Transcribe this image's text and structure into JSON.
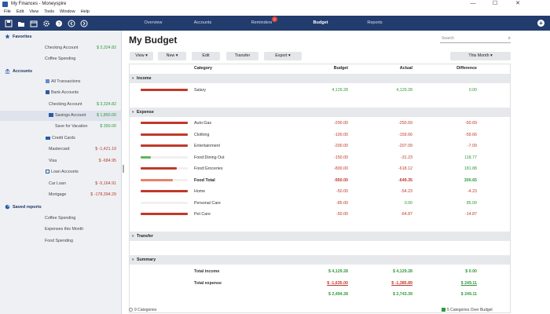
{
  "window": {
    "title": "My Finances - Moneyspire",
    "min": "—",
    "max": "☐",
    "close": "✕"
  },
  "menu": [
    "File",
    "Edit",
    "View",
    "Tools",
    "Window",
    "Help"
  ],
  "nav_tabs": [
    {
      "label": "Overview"
    },
    {
      "label": "Accounts"
    },
    {
      "label": "Reminders",
      "badge": "2"
    },
    {
      "label": "Budget"
    },
    {
      "label": "Reports"
    }
  ],
  "sidebar": {
    "favorites": {
      "title": "Favorites",
      "items": [
        {
          "label": "Checking Account",
          "amount": "$ 3,324.82"
        },
        {
          "label": "Coffee Spending",
          "amount": ""
        }
      ]
    },
    "accounts": {
      "title": "Accounts",
      "all": "All Transactions",
      "bank": "Bank Accounts",
      "bank_items": [
        {
          "label": "Checking Account",
          "amount": "$ 3,324.82"
        },
        {
          "label": "Savings Account",
          "amount": "$ 1,850.00"
        },
        {
          "label": "Save for Vacation",
          "amount": "$ 350.00"
        }
      ],
      "credit": "Credit Cards",
      "credit_items": [
        {
          "label": "Mastercard",
          "amount": "$ -1,421.19"
        },
        {
          "label": "Visa",
          "amount": "$ -684.95"
        }
      ],
      "loan": "Loan Accounts",
      "loan_items": [
        {
          "label": "Car Loan",
          "amount": "$ -5,164.91"
        },
        {
          "label": "Mortgage",
          "amount": "$ -178,394.29"
        }
      ]
    },
    "saved_reports": {
      "title": "Saved reports",
      "items": [
        "Coffee Spending",
        "Expenses this Month",
        "Food Spending"
      ]
    }
  },
  "main": {
    "title": "My Budget",
    "search_placeholder": "Search",
    "buttons": {
      "view": "View ▾",
      "new": "New ▾",
      "edit": "Edit",
      "transfer": "Transfer",
      "export": "Export ▾",
      "period": "This Month ▾"
    },
    "columns": {
      "category": "Category",
      "budget": "Budget",
      "actual": "Actual",
      "difference": "Difference"
    },
    "groups": {
      "income": "Income",
      "expense": "Expense",
      "transfer": "Transfer",
      "summary": "Summary"
    },
    "income_rows": [
      {
        "category": "Salary",
        "budget": "4,129.28",
        "actual": "4,129.28",
        "difference": "0.00",
        "fill": 1.0,
        "bar_color": "#c0392b"
      }
    ],
    "expense_rows": [
      {
        "category": "Auto:Gas",
        "budget": "-200.00",
        "actual": "-250.69",
        "difference": "-50.69",
        "fill": 1.0,
        "bar_color": "#c0392b"
      },
      {
        "category": "Clothing",
        "budget": "-100.00",
        "actual": "-159.66",
        "difference": "-59.66",
        "fill": 1.0,
        "bar_color": "#c0392b"
      },
      {
        "category": "Entertainment",
        "budget": "-200.00",
        "actual": "-207.09",
        "difference": "-7.09",
        "fill": 1.0,
        "bar_color": "#c0392b"
      },
      {
        "category": "Food:Dining Out",
        "budget": "-150.00",
        "actual": "-31.23",
        "difference": "118.77",
        "fill": 0.21,
        "bar_color": "#5cb85c"
      },
      {
        "category": "Food:Groceries",
        "budget": "-800.00",
        "actual": "-618.12",
        "difference": "181.88",
        "fill": 0.77,
        "bar_color": "#c0392b"
      },
      {
        "category": "Food Total",
        "budget": "-950.00",
        "actual": "-649.35",
        "difference": "300.65",
        "fill": 0.68,
        "bar_color": "#e8826a",
        "total": true
      },
      {
        "category": "Home",
        "budget": "-50.00",
        "actual": "-54.23",
        "difference": "-4.23",
        "fill": 1.0,
        "bar_color": "#c0392b"
      },
      {
        "category": "Personal Care",
        "budget": "-85.00",
        "actual": "0.00",
        "difference": "85.00",
        "fill": 0.0,
        "bar_color": "#c0392b"
      },
      {
        "category": "Pet Care",
        "budget": "-50.00",
        "actual": "-64.87",
        "difference": "-14.87",
        "fill": 1.0,
        "bar_color": "#c0392b"
      }
    ],
    "summary_rows": [
      {
        "label": "Total income",
        "budget": "$ 4,129.28",
        "actual": "$ 4,129.28",
        "difference": "$ 0.00"
      },
      {
        "label": "Total expense",
        "budget": "$ -1,635.00",
        "actual": "$ -1,385.89",
        "difference": "$ 249.11"
      },
      {
        "label": "",
        "budget": "$ 2,494.28",
        "actual": "$ 2,743.39",
        "difference": "$ 249.11"
      }
    ]
  },
  "status": {
    "categories": "9 Categories",
    "over": "5 Categories Over Budget"
  },
  "colors": {
    "toolbar": "#233c6e",
    "positive": "#2f9a3b",
    "negative": "#c0392b"
  }
}
